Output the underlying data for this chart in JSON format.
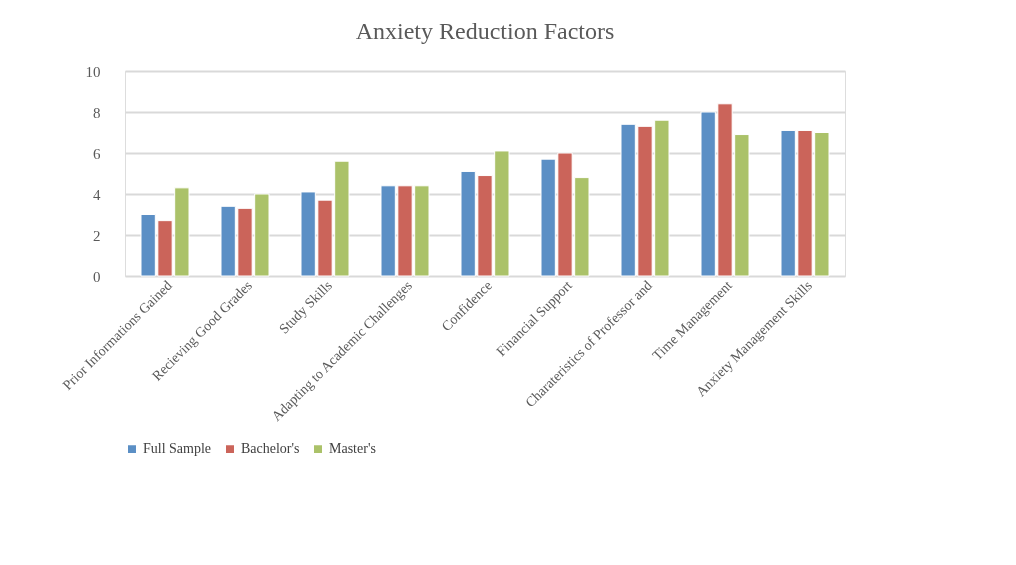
{
  "chart_data": {
    "type": "bar",
    "title": "Anxiety Reduction Factors",
    "categories": [
      "Prior Informations Gained",
      "Recieving Good Grades",
      "Study Skills",
      "Adapting to Academic Challenges",
      "Confidence",
      "Financial Support",
      "Charateristics of Professor and",
      "Time Management",
      "Anxiety Management Skills"
    ],
    "series": [
      {
        "name": "Full Sample",
        "color": "#5b8fc5",
        "values": [
          3.0,
          3.4,
          4.1,
          4.4,
          5.1,
          5.7,
          7.4,
          8.0,
          7.1
        ]
      },
      {
        "name": "Bachelor's",
        "color": "#cb645a",
        "values": [
          2.7,
          3.3,
          3.7,
          4.4,
          4.9,
          6.0,
          7.3,
          8.4,
          7.1
        ]
      },
      {
        "name": "Master's",
        "color": "#abc269",
        "values": [
          4.3,
          4.0,
          5.6,
          4.4,
          6.1,
          4.8,
          7.6,
          6.9,
          7.0
        ]
      }
    ],
    "ylim": [
      0,
      10
    ],
    "yticks": [
      0,
      2,
      4,
      6,
      8,
      10
    ],
    "grid": "y",
    "legend": "bottom"
  }
}
